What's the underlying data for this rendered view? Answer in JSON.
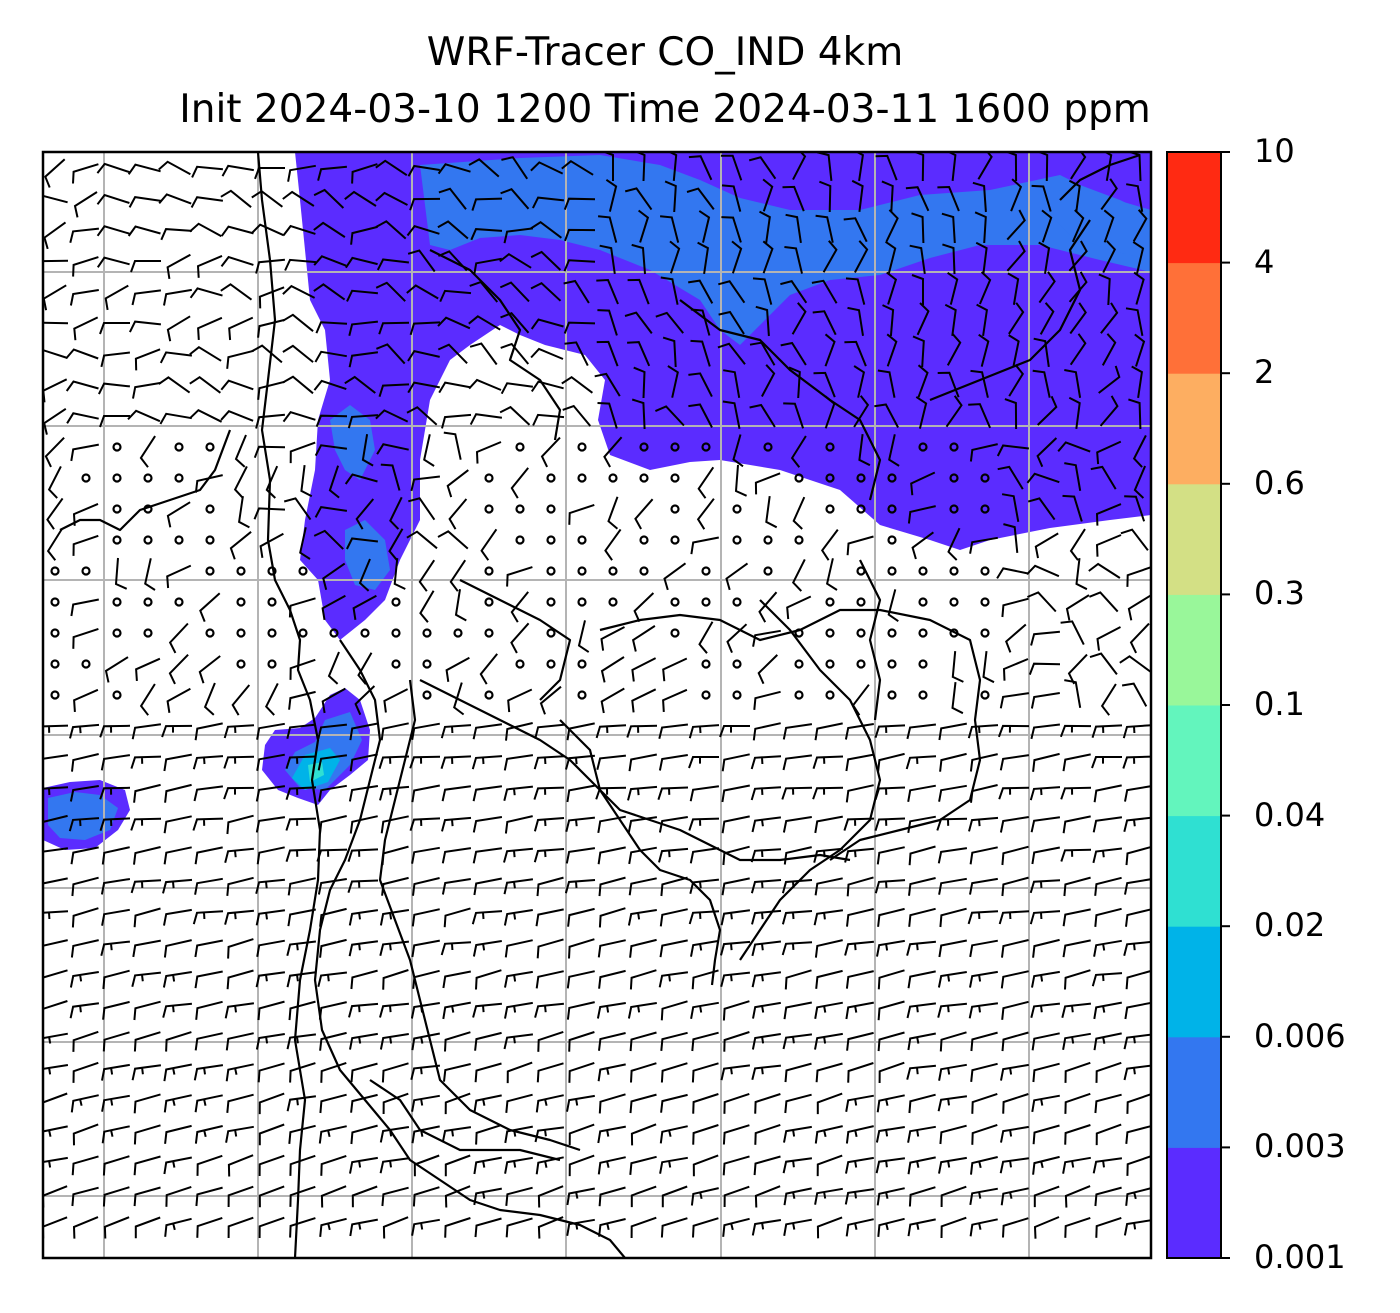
{
  "title_line1": "WRF-Tracer CO_IND 4km",
  "title_line2": "Init 2024-03-10 1200 Time 2024-03-11 1600 ppm",
  "colorbar": {
    "levels": [
      "0.001",
      "0.003",
      "0.006",
      "0.02",
      "0.04",
      "0.1",
      "0.3",
      "0.6",
      "2",
      "4",
      "10"
    ],
    "colors": [
      "#5b2cff",
      "#3377f0",
      "#00b3e8",
      "#2fe0d2",
      "#63f5bd",
      "#99f79a",
      "#d3e085",
      "#fdae61",
      "#ff7038",
      "#ff2a12"
    ]
  },
  "legend_colors": {
    "plume_light": "#5b2cff",
    "plume_medium": "#3377f0",
    "plume_cyan": "#00b3e8",
    "plume_teal": "#2fe0d2",
    "coastline": "#000000",
    "gridline": "#b4b4b4",
    "wind_barb": "#000000"
  },
  "map_features": [
    "tracer-concentration-fill",
    "wind-barbs",
    "calm-wind-circles",
    "coastlines-and-borders",
    "lat-lon-gridlines"
  ]
}
